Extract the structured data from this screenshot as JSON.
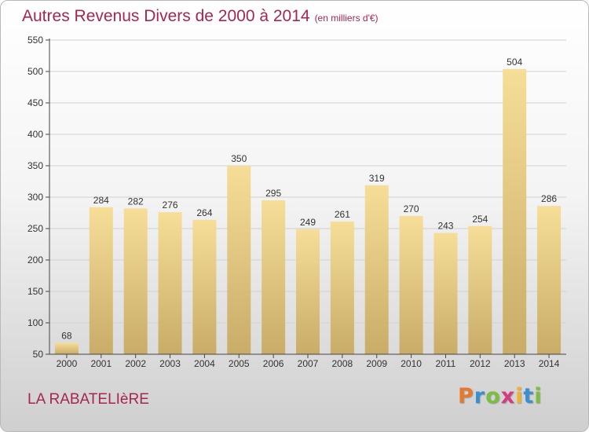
{
  "header": {
    "title": "Autres Revenus Divers de 2000 à 2014",
    "subtitle": "(en milliers d'€)"
  },
  "footer": {
    "commune": "LA RABATELIèRE",
    "logo": {
      "letters": [
        "P",
        "r",
        "o",
        "x",
        "i",
        "t",
        "i"
      ],
      "colors": [
        "#e5792f",
        "#3a8fd0",
        "#7bbf3f",
        "#d53b80",
        "#f2b32a",
        "#3a8fd0",
        "#7bbf3f"
      ]
    }
  },
  "chart_data": {
    "type": "bar",
    "categories": [
      "2000",
      "2001",
      "2002",
      "2003",
      "2004",
      "2005",
      "2006",
      "2007",
      "2008",
      "2009",
      "2010",
      "2011",
      "2012",
      "2013",
      "2014"
    ],
    "values": [
      68,
      284,
      282,
      276,
      264,
      350,
      295,
      249,
      261,
      319,
      270,
      243,
      254,
      504,
      286
    ],
    "title": "Autres Revenus Divers de 2000 à 2014",
    "subtitle": "(en milliers d'€)",
    "xlabel": "",
    "ylabel": "",
    "ylim": [
      50,
      550
    ],
    "yticks": [
      50,
      100,
      150,
      200,
      250,
      300,
      350,
      400,
      450,
      500,
      550
    ],
    "grid": true,
    "data_labels": true,
    "colors": {
      "bar_light": "#f6de98",
      "bar_dark": "#c8ac68",
      "grid": "#d0d0d0",
      "axis": "#444444",
      "text": "#333333"
    }
  }
}
